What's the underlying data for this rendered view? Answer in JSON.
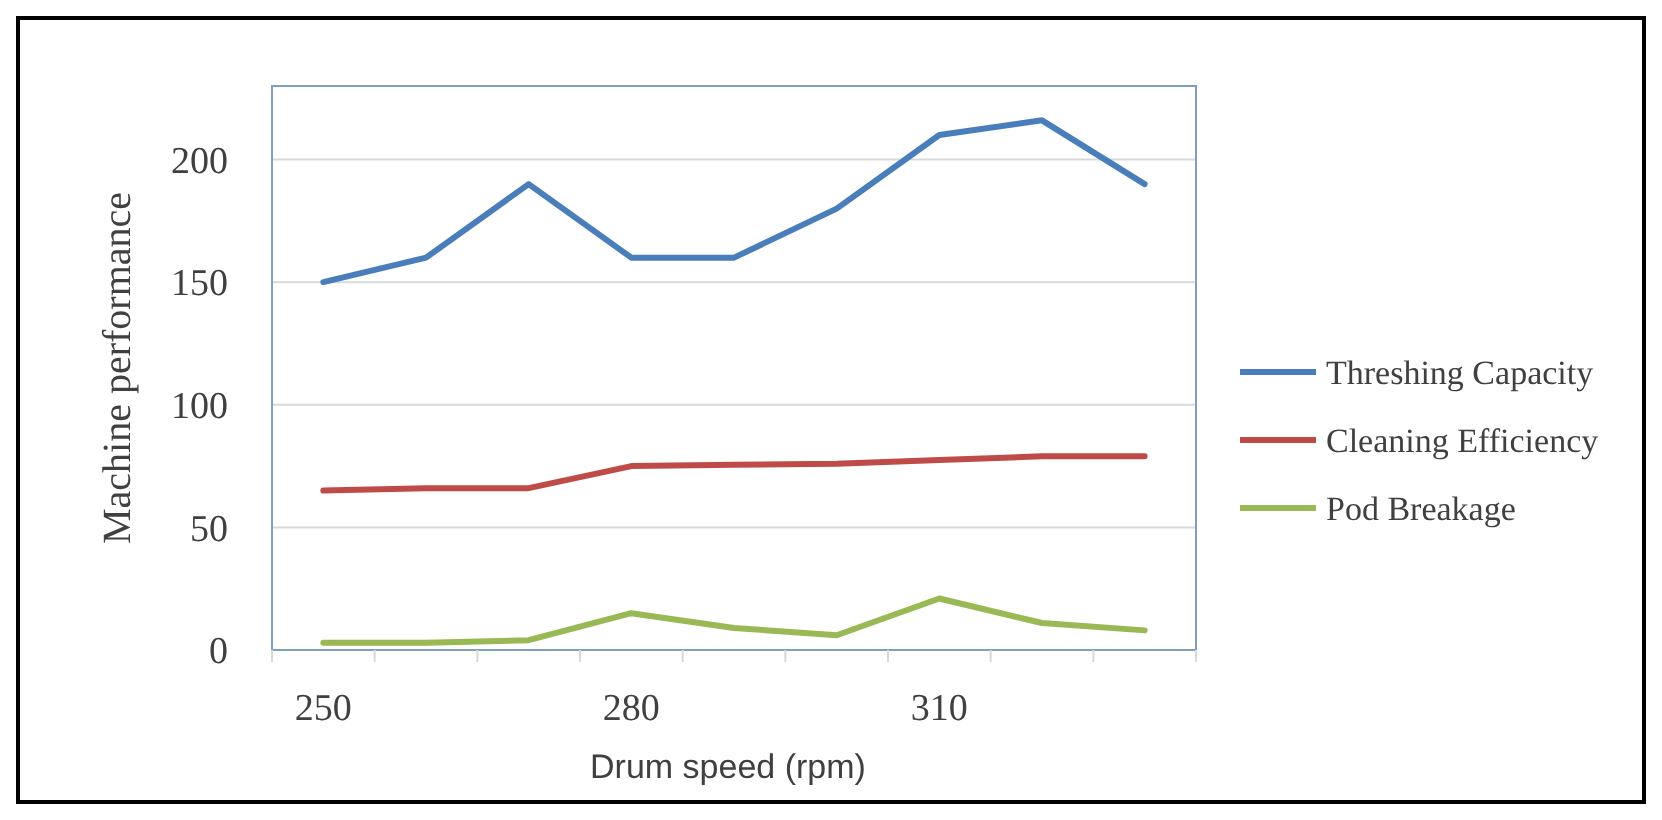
{
  "chart_data": {
    "type": "line",
    "xlabel": "Drum speed (rpm)",
    "ylabel": "Machine performance",
    "categories": [
      "250",
      null,
      null,
      "280",
      null,
      null,
      "310",
      null,
      null
    ],
    "ylim": [
      0,
      230
    ],
    "yticks": [
      0,
      50,
      100,
      150,
      200
    ],
    "grid": "y",
    "legend": "right",
    "marker": "none",
    "line_style": "solid",
    "series": [
      {
        "name": "Threshing Capacity",
        "color": "#4a7ebb",
        "values": [
          150,
          160,
          190,
          160,
          160,
          180,
          210,
          216,
          190
        ]
      },
      {
        "name": "Cleaning Efficiency",
        "color": "#be4b48",
        "values": [
          65,
          66,
          66,
          75,
          75.5,
          76,
          77.5,
          79,
          79
        ]
      },
      {
        "name": "Pod Breakage",
        "color": "#98b954",
        "values": [
          3,
          3,
          4,
          15,
          9,
          6,
          21,
          11,
          8
        ]
      }
    ]
  }
}
